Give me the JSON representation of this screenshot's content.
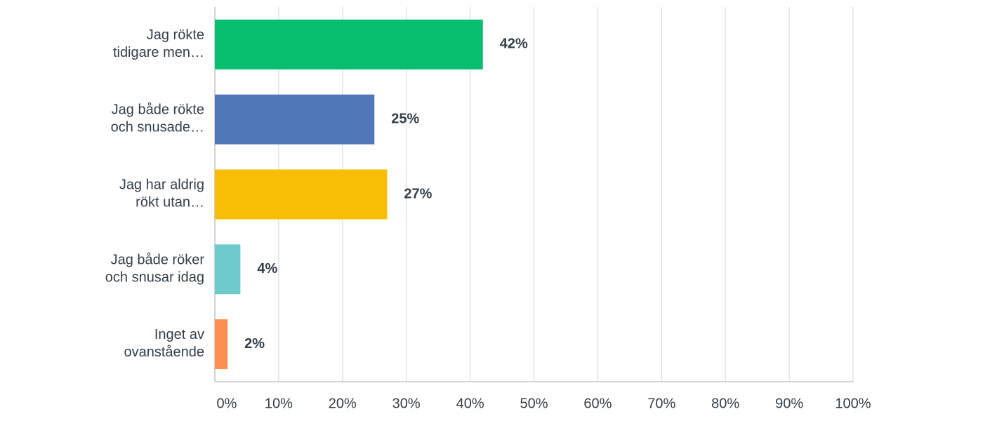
{
  "chart_data": {
    "type": "hbar",
    "categories": [
      "Jag rökte\ntidigare men…",
      "Jag både rökte\noch snusade…",
      "Jag har aldrig\nrökt utan…",
      "Jag både röker\noch snusar idag",
      "Inget av\novanstående"
    ],
    "values": [
      42,
      25,
      27,
      4,
      2
    ],
    "value_labels": [
      "42%",
      "25%",
      "27%",
      "4%",
      "2%"
    ],
    "colors": [
      "#08bf6f",
      "#5078b8",
      "#f8be05",
      "#6ecbcc",
      "#fd8f51"
    ],
    "xlim": [
      0,
      100
    ],
    "xticks": [
      {
        "value": 0,
        "label": "0%"
      },
      {
        "value": 10,
        "label": "10%"
      },
      {
        "value": 20,
        "label": "20%"
      },
      {
        "value": 30,
        "label": "30%"
      },
      {
        "value": 40,
        "label": "40%"
      },
      {
        "value": 50,
        "label": "50%"
      },
      {
        "value": 60,
        "label": "60%"
      },
      {
        "value": 70,
        "label": "70%"
      },
      {
        "value": 80,
        "label": "80%"
      },
      {
        "value": 90,
        "label": "90%"
      },
      {
        "value": 100,
        "label": "100%"
      }
    ],
    "grid": true
  }
}
